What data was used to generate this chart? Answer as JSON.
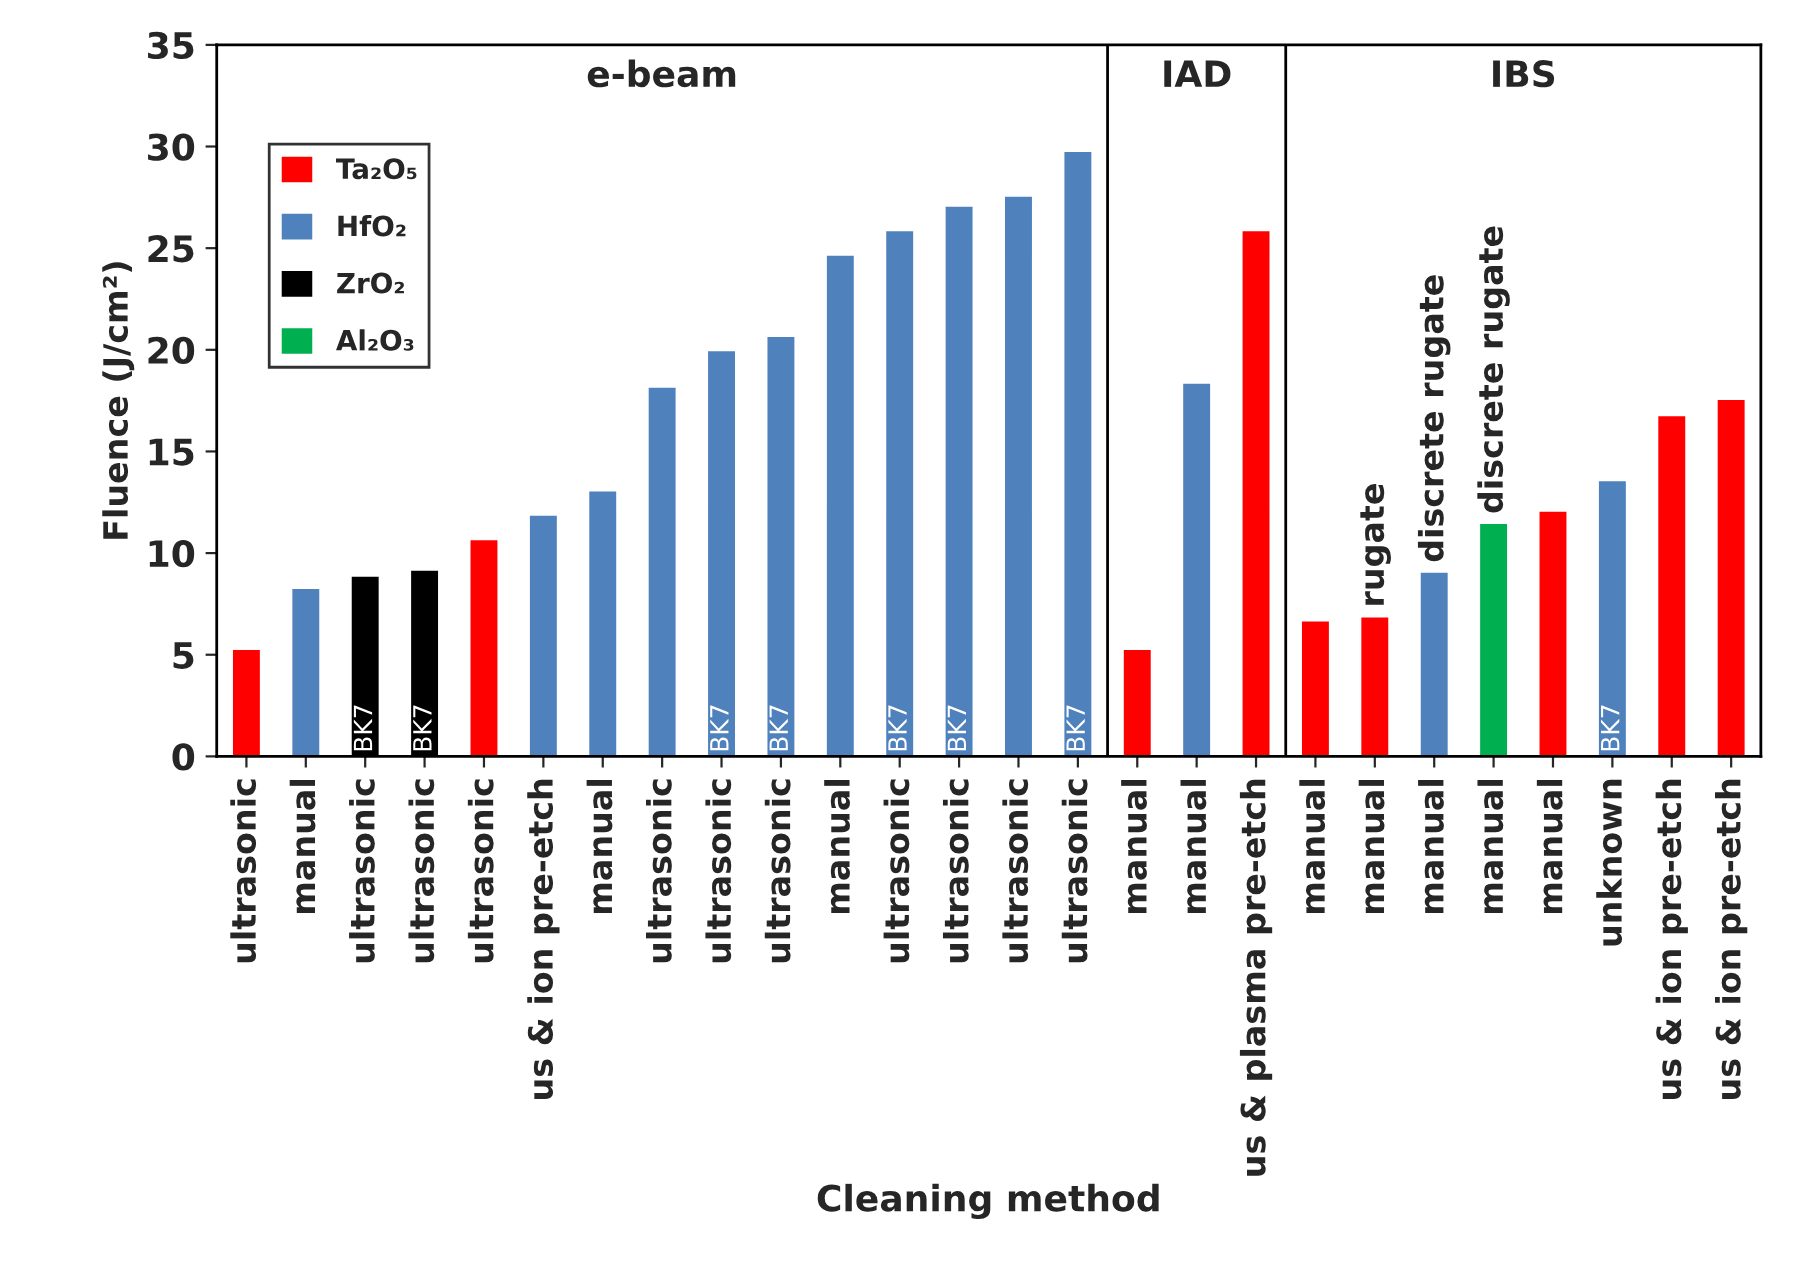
{
  "chart_data": {
    "type": "bar",
    "xlabel": "Cleaning method",
    "ylabel": "Fluence (J/cm²)",
    "categories": [
      "ultrasonic",
      "manual",
      "ultrasonic",
      "ultrasonic",
      "ultrasonic",
      "us & ion pre-etch",
      "manual",
      "ultrasonic",
      "ultrasonic",
      "ultrasonic",
      "manual",
      "ultrasonic",
      "ultrasonic",
      "ultrasonic",
      "ultrasonic",
      "manual",
      "manual",
      "us & plasma pre-etch",
      "manual",
      "manual",
      "manual",
      "manual",
      "manual",
      "unknown",
      "us & ion pre-etch",
      "us & ion pre-etch"
    ],
    "series": [
      {
        "name": "Ta₂O₅",
        "color": "#ff0000",
        "values": [
          5.3,
          null,
          null,
          null,
          10.7,
          null,
          null,
          null,
          null,
          null,
          null,
          null,
          null,
          null,
          null,
          5.3,
          null,
          25.9,
          6.7,
          6.9,
          null,
          null,
          12.1,
          null,
          16.8,
          17.6
        ]
      },
      {
        "name": "HfO₂",
        "color": "#4f81bd",
        "values": [
          null,
          8.3,
          null,
          null,
          null,
          11.9,
          13.1,
          18.2,
          20.0,
          20.7,
          24.7,
          25.9,
          27.1,
          27.6,
          29.8,
          null,
          18.4,
          null,
          null,
          null,
          9.1,
          null,
          null,
          13.6,
          null,
          null
        ]
      },
      {
        "name": "ZrO₂",
        "color": "#000000",
        "values": [
          null,
          null,
          8.9,
          9.2,
          null,
          null,
          null,
          null,
          null,
          null,
          null,
          null,
          null,
          null,
          null,
          null,
          null,
          null,
          null,
          null,
          null,
          null,
          null,
          null,
          null,
          null
        ]
      },
      {
        "name": "Al₂O₃",
        "color": "#00b050",
        "values": [
          null,
          null,
          null,
          null,
          null,
          null,
          null,
          null,
          null,
          null,
          null,
          null,
          null,
          null,
          null,
          null,
          null,
          null,
          null,
          null,
          null,
          11.5,
          null,
          null,
          null,
          null
        ]
      }
    ],
    "ylim": [
      0,
      35
    ],
    "yticks": [
      0,
      5,
      10,
      15,
      20,
      25,
      30,
      35
    ],
    "grid": false,
    "legend": "top left",
    "annotations": [
      "e-beam",
      "IAD",
      "IBS",
      "BK7",
      "BK7",
      "BK7",
      "BK7",
      "BK7",
      "BK7",
      "BK7",
      "BK7",
      "rugate",
      "discrete rugate",
      "discrete rugate"
    ]
  }
}
